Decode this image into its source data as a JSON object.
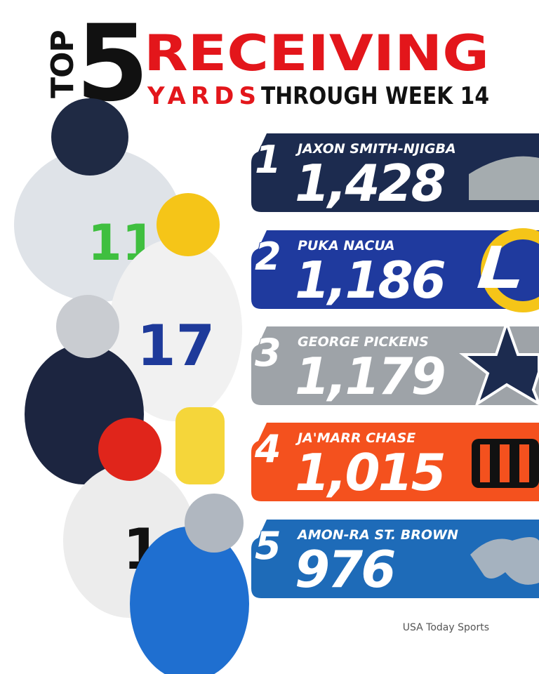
{
  "header": {
    "top": "TOP",
    "number": "5",
    "title": "RECEIVING",
    "subtitle_highlight": "YARDS",
    "subtitle": "THROUGH WEEK 14"
  },
  "rankings": [
    {
      "rank": 1,
      "name": "JAXON SMITH-NJIGBA",
      "yards": "1,428"
    },
    {
      "rank": 2,
      "name": "PUKA NACUA",
      "yards": "1,186"
    },
    {
      "rank": 3,
      "name": "GEORGE PICKENS",
      "yards": "1,179"
    },
    {
      "rank": 4,
      "name": "JA'MARR CHASE",
      "yards": "1,015"
    },
    {
      "rank": 5,
      "name": "AMON-RA ST. BROWN",
      "yards": "976"
    }
  ],
  "credit": "USA Today Sports"
}
